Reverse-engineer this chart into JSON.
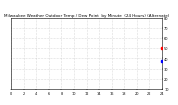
{
  "title": "Milwaukee Weather Outdoor Temp / Dew Point  by Minute  (24 Hours) (Alternate)",
  "bg_color": "#ffffff",
  "plot_bg_color": "#ffffff",
  "temp_color": "#ff0000",
  "dew_color": "#0000ff",
  "grid_color": "#aaaaaa",
  "ylim_min": 10,
  "ylim_max": 80,
  "xlim_min": 0,
  "xlim_max": 1440,
  "title_fontsize": 3.0,
  "tick_fontsize": 2.5
}
